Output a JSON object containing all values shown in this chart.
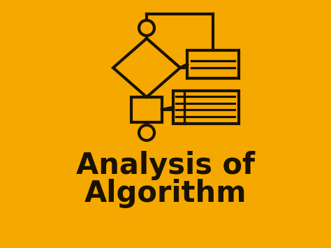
{
  "bg_color": "#F5A800",
  "text_line1": "Analysis of",
  "text_line2": "Algorithm",
  "text_color": "#1a1200",
  "text_fontsize": 30,
  "icon_color": "#1a1200",
  "icon_lw": 3.0,
  "figsize": [
    4.74,
    3.55
  ],
  "dpi": 100
}
